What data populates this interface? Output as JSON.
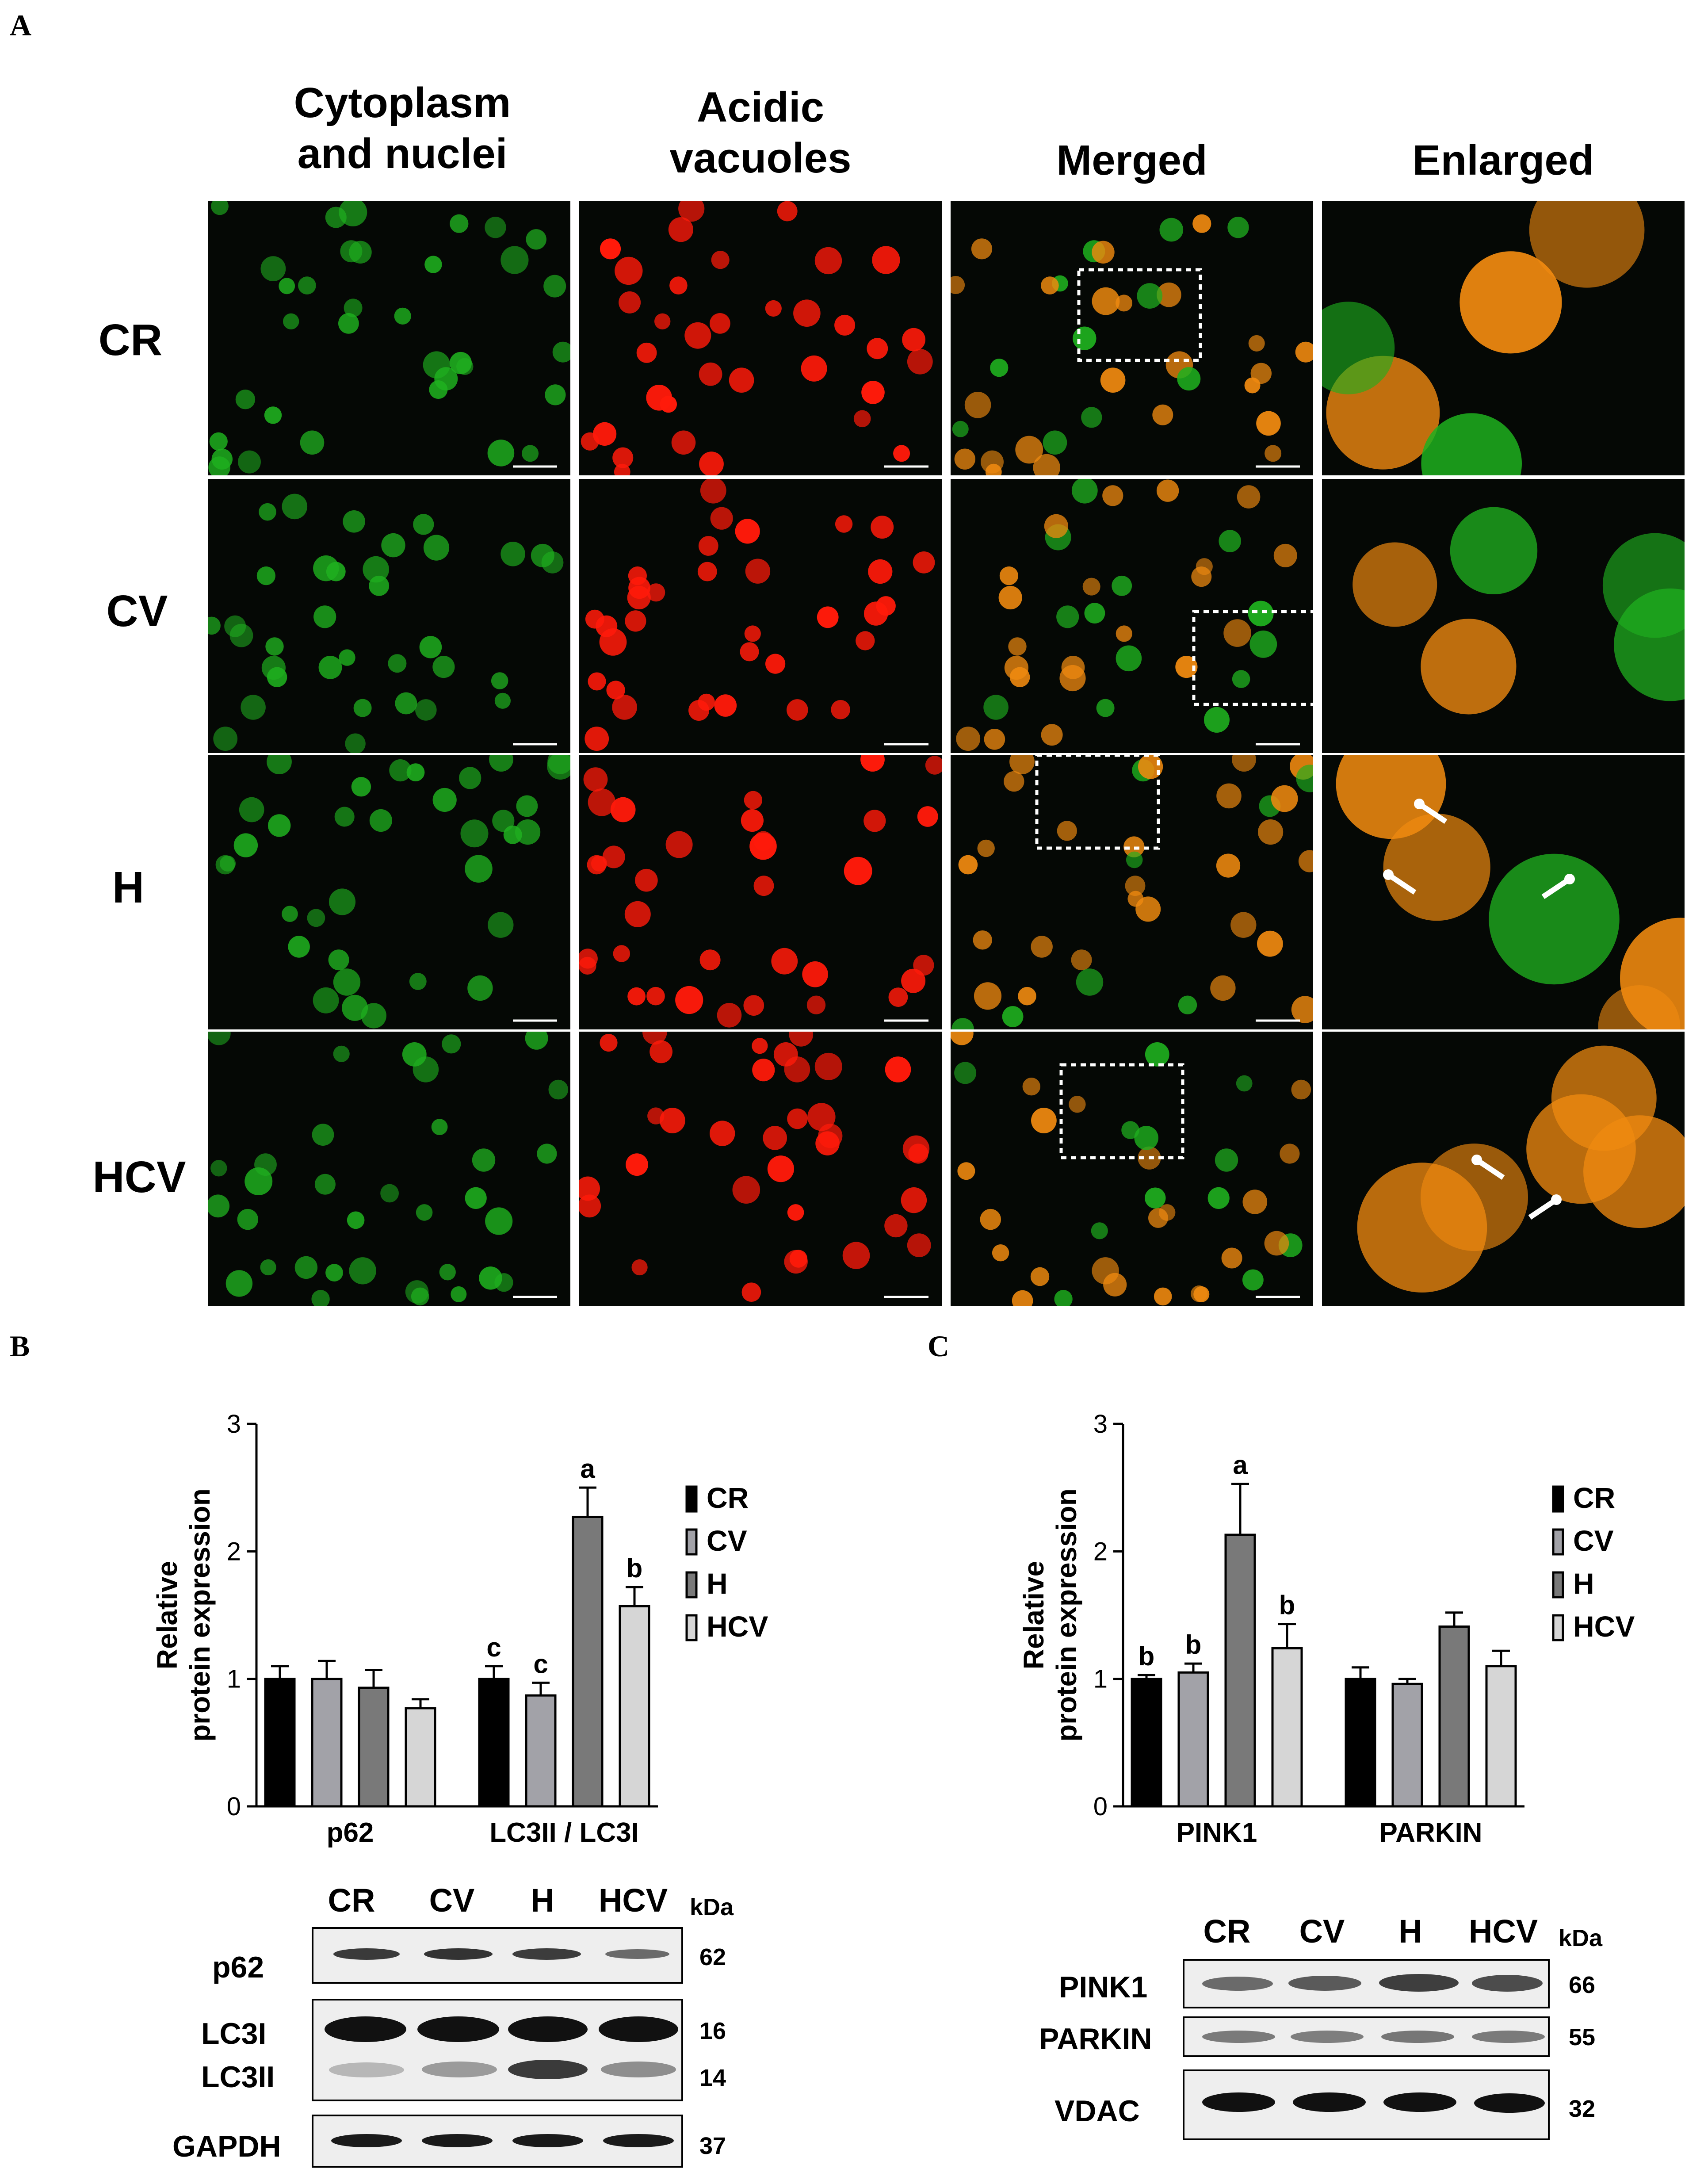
{
  "panels": {
    "a": "A",
    "b": "B",
    "c": "C"
  },
  "microscopy": {
    "columns": [
      {
        "line1": "Cytoplasm",
        "line2": "and nuclei"
      },
      {
        "line1": "Acidic",
        "line2": "vacuoles"
      },
      {
        "line1": "",
        "line2": "Merged"
      },
      {
        "line1": "",
        "line2": "Enlarged"
      }
    ],
    "rows": [
      "CR",
      "CV",
      "H",
      "HCV"
    ],
    "colors": {
      "green": "#1fb01f",
      "red": "#ff1a0a",
      "orange": "#f08a10",
      "background": "#050805"
    }
  },
  "chart_data": [
    {
      "type": "bar",
      "ylabel_line1": "Relative",
      "ylabel_line2": "protein expression",
      "ylim": [
        0,
        3
      ],
      "yticks": [
        "0",
        "1",
        "2",
        "3"
      ],
      "categories": [
        "p62",
        "LC3II / LC3I"
      ],
      "series": [
        {
          "name": "CR",
          "color": "#000000",
          "values": [
            1.0,
            1.0
          ],
          "errors": [
            0.1,
            0.1
          ],
          "letters": [
            "",
            "c"
          ]
        },
        {
          "name": "CV",
          "color": "#a2a2a8",
          "values": [
            1.0,
            0.87
          ],
          "errors": [
            0.14,
            0.1
          ],
          "letters": [
            "",
            "c"
          ]
        },
        {
          "name": "H",
          "color": "#797979",
          "values": [
            0.93,
            2.27
          ],
          "errors": [
            0.14,
            0.23
          ],
          "letters": [
            "",
            "a"
          ]
        },
        {
          "name": "HCV",
          "color": "#d6d6d6",
          "values": [
            0.77,
            1.57
          ],
          "errors": [
            0.07,
            0.15
          ],
          "letters": [
            "",
            "b"
          ]
        }
      ],
      "legend": [
        "CR",
        "CV",
        "H",
        "HCV"
      ]
    },
    {
      "type": "bar",
      "ylabel_line1": "Relative",
      "ylabel_line2": "protein expression",
      "ylim": [
        0,
        3
      ],
      "yticks": [
        "0",
        "1",
        "2",
        "3"
      ],
      "categories": [
        "PINK1",
        "PARKIN"
      ],
      "series": [
        {
          "name": "CR",
          "color": "#000000",
          "values": [
            1.0,
            1.0
          ],
          "errors": [
            0.03,
            0.09
          ],
          "letters": [
            "b",
            ""
          ]
        },
        {
          "name": "CV",
          "color": "#a2a2a8",
          "values": [
            1.05,
            0.96
          ],
          "errors": [
            0.07,
            0.04
          ],
          "letters": [
            "b",
            ""
          ]
        },
        {
          "name": "H",
          "color": "#797979",
          "values": [
            2.13,
            1.41
          ],
          "errors": [
            0.4,
            0.11
          ],
          "letters": [
            "a",
            ""
          ]
        },
        {
          "name": "HCV",
          "color": "#d6d6d6",
          "values": [
            1.24,
            1.1
          ],
          "errors": [
            0.19,
            0.12
          ],
          "letters": [
            "b",
            ""
          ]
        }
      ],
      "legend": [
        "CR",
        "CV",
        "H",
        "HCV"
      ]
    }
  ],
  "blot_b": {
    "lanes": [
      "CR",
      "CV",
      "H",
      "HCV"
    ],
    "kda_label": "kDa",
    "rows": [
      {
        "label": "p62",
        "mw": "62"
      },
      {
        "label": "LC3I",
        "mw": "16"
      },
      {
        "label": "LC3II",
        "mw": "14"
      },
      {
        "label": "GAPDH",
        "mw": "37"
      }
    ]
  },
  "blot_c": {
    "lanes": [
      "CR",
      "CV",
      "H",
      "HCV"
    ],
    "kda_label": "kDa",
    "rows": [
      {
        "label": "PINK1",
        "mw": "66"
      },
      {
        "label": "PARKIN",
        "mw": "55"
      },
      {
        "label": "VDAC",
        "mw": "32"
      }
    ]
  }
}
